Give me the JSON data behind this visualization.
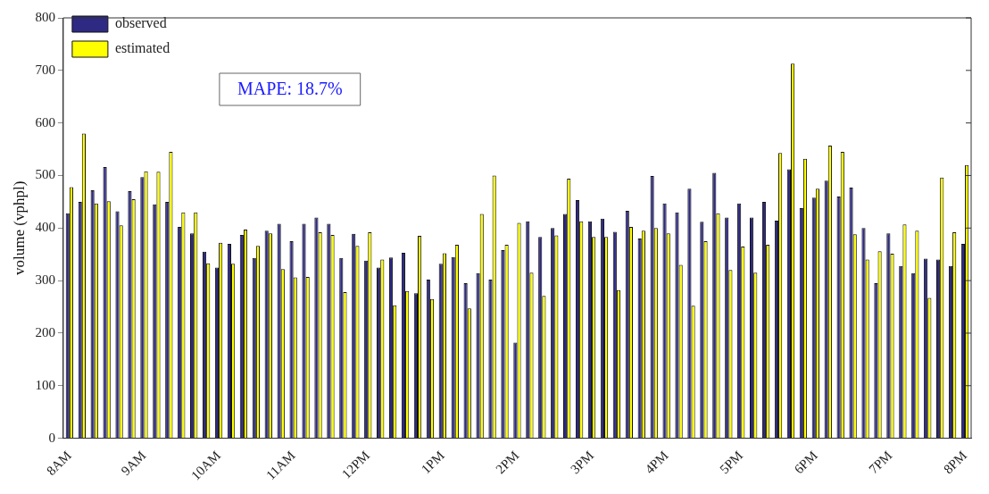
{
  "chart_data": {
    "type": "bar",
    "ylabel": "volume (vphpl)",
    "annotations": [
      "MAPE: 18.7%"
    ],
    "categories": [
      "8AM",
      null,
      null,
      null,
      null,
      null,
      "9AM",
      null,
      null,
      null,
      null,
      null,
      "10AM",
      null,
      null,
      null,
      null,
      null,
      "11AM",
      null,
      null,
      null,
      null,
      null,
      "12PM",
      null,
      null,
      null,
      null,
      null,
      "1PM",
      null,
      null,
      null,
      null,
      null,
      "2PM",
      null,
      null,
      null,
      null,
      null,
      "3PM",
      null,
      null,
      null,
      null,
      null,
      "4PM",
      null,
      null,
      null,
      null,
      null,
      "5PM",
      null,
      null,
      null,
      null,
      null,
      "6PM",
      null,
      null,
      null,
      null,
      null,
      "7PM",
      null,
      null,
      null,
      null,
      null,
      "8PM"
    ],
    "series": [
      {
        "name": "observed",
        "color": "#2e2a84",
        "values": [
          428,
          450,
          472,
          516,
          432,
          470,
          497,
          445,
          450,
          402,
          390,
          355,
          325,
          370,
          387,
          343,
          395,
          408,
          375,
          408,
          420,
          408,
          343,
          389,
          338,
          325,
          344,
          353,
          276,
          302,
          332,
          345,
          295,
          314,
          302,
          358,
          182,
          413,
          383,
          400,
          427,
          453,
          413,
          418,
          393,
          433,
          380,
          499,
          447,
          430,
          475,
          412,
          505,
          420,
          447,
          420,
          450,
          414,
          512,
          438,
          458,
          490,
          460,
          477,
          400,
          295,
          390,
          328,
          314,
          342,
          340,
          328,
          370
        ]
      },
      {
        "name": "estimated",
        "color": "#ffff00",
        "values": [
          478,
          580,
          447,
          451,
          405,
          455,
          508,
          507,
          545,
          430,
          430,
          333,
          372,
          332,
          397,
          366,
          390,
          322,
          306,
          307,
          392,
          387,
          278,
          366,
          392,
          340,
          253,
          280,
          385,
          265,
          352,
          368,
          247,
          427,
          500,
          368,
          410,
          315,
          271,
          386,
          494,
          413,
          383,
          383,
          282,
          402,
          395,
          400,
          390,
          330,
          252,
          375,
          428,
          320,
          365,
          315,
          368,
          543,
          713,
          532,
          475,
          557,
          545,
          388,
          340,
          356,
          351,
          407,
          395,
          267,
          496,
          392,
          520
        ]
      }
    ],
    "ylim": [
      0,
      800
    ],
    "yticks": [
      0,
      100,
      200,
      300,
      400,
      500,
      600,
      700,
      800
    ],
    "grid": false,
    "legend": "top left"
  }
}
